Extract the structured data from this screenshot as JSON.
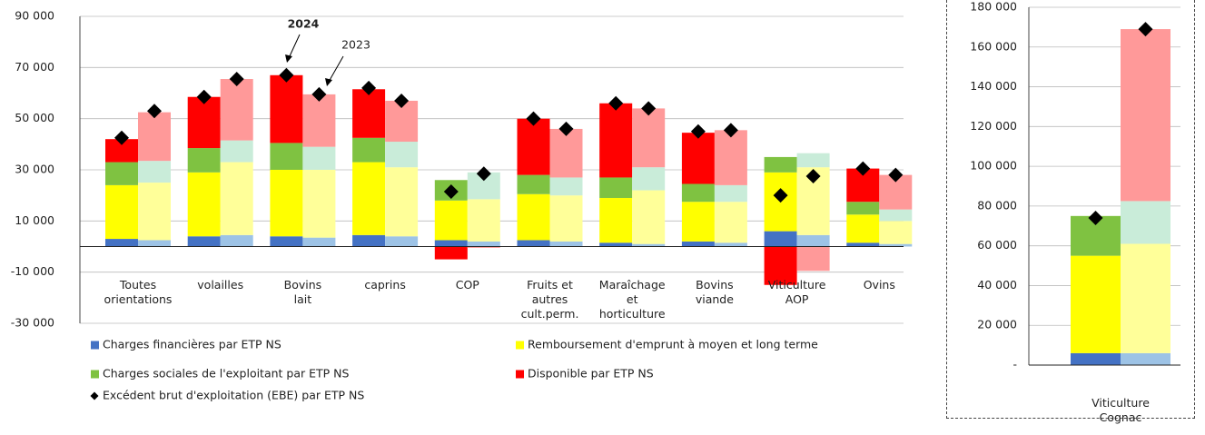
{
  "chart_data": [
    {
      "type": "stacked-pair",
      "annotations": [
        "2024",
        "2023"
      ],
      "categories": [
        "Toutes\norientations",
        "volailles",
        "Bovins\nlait",
        "caprins",
        "COP",
        "Fruits et\nautres\ncult.perm.",
        "Maraîchage\net\nhorticulture",
        "Bovins\nviande",
        "Viticulture\nAOP",
        "Ovins"
      ],
      "series": [
        {
          "name": "Charges financières par ETP NS",
          "colors": [
            "#4472c4",
            "#9dc3e6"
          ],
          "values": [
            [
              3000,
              4000,
              4000,
              4500,
              2500,
              2500,
              1500,
              2000,
              6000,
              1500
            ],
            [
              2500,
              4500,
              3500,
              4000,
              2000,
              2000,
              1000,
              1500,
              4500,
              1000
            ]
          ]
        },
        {
          "name": "Remboursement d'emprunt à moyen et long terme",
          "colors": [
            "#ffff00",
            "#ffff99"
          ],
          "values": [
            [
              21000,
              25000,
              26000,
              28500,
              15500,
              18000,
              17500,
              15500,
              23000,
              11000
            ],
            [
              22500,
              28500,
              26500,
              27000,
              16500,
              18000,
              21000,
              16000,
              26500,
              9000
            ]
          ]
        },
        {
          "name": "Charges sociales de l'exploitant  par ETP NS",
          "colors": [
            "#7fc241",
            "#c9ecd9"
          ],
          "values": [
            [
              9000,
              9500,
              10500,
              9500,
              8000,
              7500,
              8000,
              7000,
              6000,
              5000
            ],
            [
              8500,
              8500,
              9000,
              10000,
              10500,
              7000,
              9000,
              6500,
              5500,
              4500
            ]
          ]
        },
        {
          "name": "Disponible  par ETP NS",
          "colors": [
            "#ff0000",
            "#ff9999"
          ],
          "values": [
            [
              9000,
              20000,
              26500,
              19000,
              -5000,
              22000,
              29000,
              20000,
              -15000,
              13000
            ],
            [
              19000,
              24000,
              20500,
              16000,
              -500,
              19000,
              23000,
              21500,
              -9500,
              13500
            ]
          ]
        },
        {
          "name": "Excédent brut d'exploitation (EBE) par ETP NS",
          "type": "marker",
          "colors": [
            "#000000",
            "#000000"
          ],
          "values": [
            [
              42500,
              58500,
              67000,
              62000,
              21500,
              50000,
              56000,
              45000,
              20000,
              30500
            ],
            [
              53000,
              65500,
              59500,
              57000,
              28500,
              46000,
              54000,
              45500,
              27500,
              28000
            ]
          ]
        }
      ],
      "ylim": [
        -30000,
        90000
      ],
      "yticks": [
        {
          "value": -30000,
          "label": "-30 000"
        },
        {
          "value": -10000,
          "label": "-10 000"
        },
        {
          "value": 10000,
          "label": "10 000"
        },
        {
          "value": 30000,
          "label": "30 000"
        },
        {
          "value": 50000,
          "label": "50 000"
        },
        {
          "value": 70000,
          "label": "70 000"
        },
        {
          "value": 90000,
          "label": "90 000"
        }
      ],
      "grid": true,
      "legend": "bottom"
    },
    {
      "type": "stacked-pair",
      "categories": [
        "Viticulture Cognac"
      ],
      "series": [
        {
          "colors": [
            "#4472c4",
            "#9dc3e6"
          ],
          "values": [
            [
              6000
            ],
            [
              6000
            ]
          ]
        },
        {
          "colors": [
            "#ffff00",
            "#ffff99"
          ],
          "values": [
            [
              49000
            ],
            [
              55000
            ]
          ]
        },
        {
          "colors": [
            "#7fc241",
            "#c9ecd9"
          ],
          "values": [
            [
              20000
            ],
            [
              21500
            ]
          ]
        },
        {
          "colors": [
            "#ff0000",
            "#ff9999"
          ],
          "values": [
            [
              0
            ],
            [
              86500
            ]
          ]
        },
        {
          "type": "marker",
          "colors": [
            "#000000",
            "#000000"
          ],
          "values": [
            [
              74000
            ],
            [
              169000
            ]
          ]
        }
      ],
      "ylim": [
        0,
        180000
      ],
      "yticks": [
        {
          "value": 0,
          "label": "-"
        },
        {
          "value": 20000,
          "label": "20 000"
        },
        {
          "value": 40000,
          "label": "40 000"
        },
        {
          "value": 60000,
          "label": "60 000"
        },
        {
          "value": 80000,
          "label": "80 000"
        },
        {
          "value": 100000,
          "label": "100 000"
        },
        {
          "value": 120000,
          "label": "120 000"
        },
        {
          "value": 140000,
          "label": "140 000"
        },
        {
          "value": 160000,
          "label": "160 000"
        },
        {
          "value": 180000,
          "label": "180 000"
        }
      ],
      "grid": true
    }
  ]
}
